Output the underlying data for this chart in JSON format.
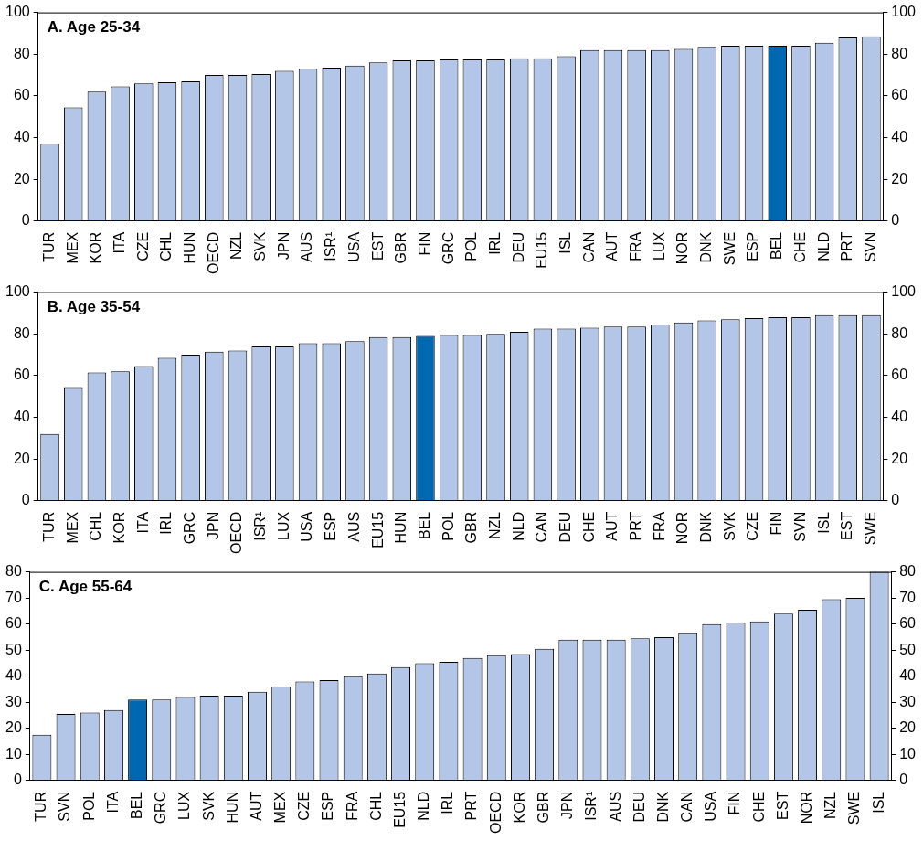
{
  "chart_data": [
    {
      "type": "bar",
      "title": "A. Age 25-34",
      "categories": [
        "TUR",
        "MEX",
        "KOR",
        "ITA",
        "CZE",
        "CHL",
        "HUN",
        "OECD",
        "NZL",
        "SVK",
        "JPN",
        "AUS",
        "ISR¹",
        "USA",
        "EST",
        "GBR",
        "FIN",
        "GRC",
        "POL",
        "IRL",
        "DEU",
        "EU15",
        "ISL",
        "CAN",
        "AUT",
        "FRA",
        "LUX",
        "NOR",
        "DNK",
        "SWE",
        "ESP",
        "BEL",
        "CHE",
        "NLD",
        "PRT",
        "SVN"
      ],
      "values": [
        37,
        54.5,
        62,
        64.5,
        66,
        66.5,
        67,
        70,
        70,
        70.5,
        72,
        73,
        73.5,
        74.5,
        76,
        77,
        77,
        77.5,
        77.5,
        77.5,
        78,
        78,
        79,
        82,
        82,
        82,
        82,
        82.5,
        83.5,
        84,
        84,
        84,
        84,
        85.5,
        88,
        88.5
      ],
      "colors": [
        "#b4c6e7",
        "#b4c6e7",
        "#b4c6e7",
        "#b4c6e7",
        "#b4c6e7",
        "#b4c6e7",
        "#b4c6e7",
        "#b4c6e7",
        "#b4c6e7",
        "#b4c6e7",
        "#b4c6e7",
        "#b4c6e7",
        "#b4c6e7",
        "#b4c6e7",
        "#b4c6e7",
        "#b4c6e7",
        "#b4c6e7",
        "#b4c6e7",
        "#b4c6e7",
        "#b4c6e7",
        "#b4c6e7",
        "#b4c6e7",
        "#b4c6e7",
        "#b4c6e7",
        "#b4c6e7",
        "#b4c6e7",
        "#b4c6e7",
        "#b4c6e7",
        "#b4c6e7",
        "#b4c6e7",
        "#b4c6e7",
        "#0067b1",
        "#b4c6e7",
        "#b4c6e7",
        "#b4c6e7",
        "#b4c6e7"
      ],
      "ylim": [
        0,
        100
      ],
      "yticks": [
        0,
        20,
        40,
        60,
        80,
        100
      ],
      "y2lim": [
        0,
        100
      ],
      "y2ticks": [
        0,
        20,
        40,
        60,
        80,
        100
      ],
      "grid": false,
      "legend": false
    },
    {
      "type": "bar",
      "title": "B. Age 35-54",
      "categories": [
        "TUR",
        "MEX",
        "CHL",
        "KOR",
        "ITA",
        "IRL",
        "GRC",
        "JPN",
        "OECD",
        "ISR¹",
        "LUX",
        "USA",
        "ESP",
        "AUS",
        "EU15",
        "HUN",
        "BEL",
        "POL",
        "GBR",
        "NZL",
        "NLD",
        "CAN",
        "DEU",
        "CHE",
        "AUT",
        "PRT",
        "FRA",
        "NOR",
        "DNK",
        "SVK",
        "CZE",
        "FIN",
        "SVN",
        "ISL",
        "EST",
        "SWE"
      ],
      "values": [
        32,
        54.5,
        61.5,
        62,
        64.5,
        68.5,
        70,
        71.5,
        72,
        74,
        74,
        75.5,
        75.5,
        76.5,
        78.5,
        78.5,
        79,
        79.5,
        79.5,
        80,
        81,
        82.5,
        82.5,
        83,
        83.5,
        83.5,
        84.5,
        85.5,
        86.5,
        87,
        87.5,
        88,
        88,
        89,
        89,
        89
      ],
      "colors": [
        "#b4c6e7",
        "#b4c6e7",
        "#b4c6e7",
        "#b4c6e7",
        "#b4c6e7",
        "#b4c6e7",
        "#b4c6e7",
        "#b4c6e7",
        "#b4c6e7",
        "#b4c6e7",
        "#b4c6e7",
        "#b4c6e7",
        "#b4c6e7",
        "#b4c6e7",
        "#b4c6e7",
        "#b4c6e7",
        "#0067b1",
        "#b4c6e7",
        "#b4c6e7",
        "#b4c6e7",
        "#b4c6e7",
        "#b4c6e7",
        "#b4c6e7",
        "#b4c6e7",
        "#b4c6e7",
        "#b4c6e7",
        "#b4c6e7",
        "#b4c6e7",
        "#b4c6e7",
        "#b4c6e7",
        "#b4c6e7",
        "#b4c6e7",
        "#b4c6e7",
        "#b4c6e7",
        "#b4c6e7",
        "#b4c6e7"
      ],
      "ylim": [
        0,
        100
      ],
      "yticks": [
        0,
        20,
        40,
        60,
        80,
        100
      ],
      "y2lim": [
        0,
        100
      ],
      "y2ticks": [
        0,
        20,
        40,
        60,
        80,
        100
      ],
      "grid": false,
      "legend": false
    },
    {
      "type": "bar",
      "title": "C. Age 55-64",
      "categories": [
        "TUR",
        "SVN",
        "POL",
        "ITA",
        "BEL",
        "GRC",
        "LUX",
        "SVK",
        "HUN",
        "AUT",
        "MEX",
        "CZE",
        "ESP",
        "FRA",
        "CHL",
        "EU15",
        "NLD",
        "IRL",
        "PRT",
        "OECD",
        "KOR",
        "GBR",
        "JPN",
        "ISR¹",
        "AUS",
        "DEU",
        "DNK",
        "CAN",
        "USA",
        "FIN",
        "CHE",
        "EST",
        "NOR",
        "NZL",
        "SWE",
        "ISL"
      ],
      "values": [
        17.5,
        25.5,
        26,
        27,
        31,
        31,
        32,
        32.5,
        32.5,
        34,
        36,
        38,
        38.5,
        40,
        41,
        43.5,
        45,
        45.5,
        47,
        48,
        48.5,
        50.5,
        54,
        54,
        54,
        54.5,
        55,
        56.5,
        60,
        60.5,
        61,
        64,
        65.5,
        69.5,
        70,
        80
      ],
      "colors": [
        "#b4c6e7",
        "#b4c6e7",
        "#b4c6e7",
        "#b4c6e7",
        "#0067b1",
        "#b4c6e7",
        "#b4c6e7",
        "#b4c6e7",
        "#b4c6e7",
        "#b4c6e7",
        "#b4c6e7",
        "#b4c6e7",
        "#b4c6e7",
        "#b4c6e7",
        "#b4c6e7",
        "#b4c6e7",
        "#b4c6e7",
        "#b4c6e7",
        "#b4c6e7",
        "#b4c6e7",
        "#b4c6e7",
        "#b4c6e7",
        "#b4c6e7",
        "#b4c6e7",
        "#b4c6e7",
        "#b4c6e7",
        "#b4c6e7",
        "#b4c6e7",
        "#b4c6e7",
        "#b4c6e7",
        "#b4c6e7",
        "#b4c6e7",
        "#b4c6e7",
        "#b4c6e7",
        "#b4c6e7",
        "#b4c6e7"
      ],
      "ylim": [
        0,
        80
      ],
      "yticks": [
        0,
        10,
        20,
        30,
        40,
        50,
        60,
        70,
        80
      ],
      "y2lim": [
        0,
        80
      ],
      "y2ticks": [
        0,
        10,
        20,
        30,
        40,
        50,
        60,
        70,
        80
      ],
      "grid": false,
      "legend": false
    }
  ]
}
